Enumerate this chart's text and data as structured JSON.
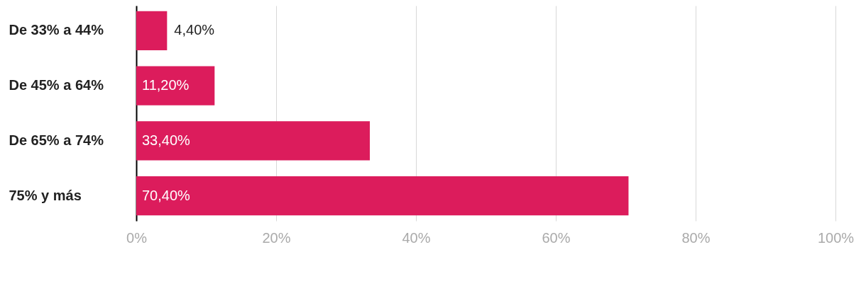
{
  "chart_data": {
    "type": "bar",
    "orientation": "horizontal",
    "categories": [
      "De 33% a 44%",
      "De 45% a 64%",
      "De 65% a 74%",
      "75% y más"
    ],
    "values": [
      4.4,
      11.2,
      33.4,
      70.4
    ],
    "value_labels": [
      "4,40%",
      "11,20%",
      "33,40%",
      "70,40%"
    ],
    "color": "#dc1c5c",
    "xlim": [
      0,
      100
    ],
    "xticks": [
      {
        "value": 0,
        "label": "0%"
      },
      {
        "value": 20,
        "label": "20%"
      },
      {
        "value": 40,
        "label": "40%"
      },
      {
        "value": 60,
        "label": "60%"
      },
      {
        "value": 80,
        "label": "80%"
      },
      {
        "value": 100,
        "label": "100%"
      }
    ],
    "grid": "x"
  }
}
